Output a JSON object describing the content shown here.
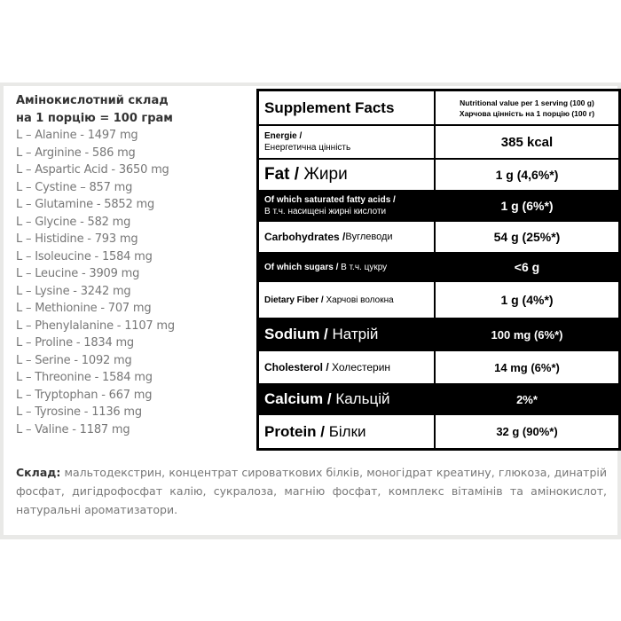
{
  "amino": {
    "title_line1": "Амінокислотний склад",
    "title_line2": "на 1 порцію = 100 грам",
    "items": [
      "L – Alanine - 1497 mg",
      "L – Arginine - 586 mg",
      "L – Aspartic Acid - 3650 mg",
      "L – Cystine – 857 mg",
      "L – Glutamine - 5852 mg",
      "L – Glycine - 582 mg",
      "L – Histidine - 793 mg",
      "L – Isoleucine - 1584 mg",
      "L – Leucine - 3909 mg",
      "L – Lysine - 3242 mg",
      "L – Methionine - 707 mg",
      "L – Phenylalanine - 1107 mg",
      "L – Proline - 1834 mg",
      "L – Serine - 1092 mg",
      "L – Threonine - 1584 mg",
      "L – Tryptophan - 667 mg",
      "L – Tyrosine - 1136 mg",
      "L – Valine - 1187 mg"
    ]
  },
  "facts": {
    "title": "Supplement Facts",
    "header_en": "Nutritional value per 1 serving (100 g)",
    "header_ua": "Харчова цінність на 1 порцію (100 г)",
    "rows": [
      {
        "en": "Energie /",
        "ua": "Енергетична цінність",
        "value": "385 kcal"
      },
      {
        "en": "Fat /",
        "ua": "Жири",
        "value": "1 g (4,6%*)"
      },
      {
        "en": "Of which saturated fatty acids /",
        "ua": "В т.ч. насищені жирні кислоти",
        "value": "1 g (6%*)"
      },
      {
        "en": "Carbohydrates /",
        "ua": "Вуглеводи",
        "value": "54 g (25%*)"
      },
      {
        "en": "Of which sugars /",
        "ua": "В т.ч. цукру",
        "value": "<6 g"
      },
      {
        "en": "Dietary Fiber /",
        "ua": "Харчові волокна",
        "value": "1 g (4%*)"
      },
      {
        "en": "Sodium /",
        "ua": "Натрій",
        "value": "100 mg (6%*)"
      },
      {
        "en": "Cholesterol  /",
        "ua": "Холестерин",
        "value": "14 mg (6%*)"
      },
      {
        "en": "Calcium /",
        "ua": "Кальцій",
        "value": "2%*"
      },
      {
        "en": "Protein /",
        "ua": "Білки",
        "value": "32 g (90%*)"
      }
    ]
  },
  "composition": {
    "label": "Склад:",
    "text": "мальтодекстрин, концентрат сироваткових білків, моногідрат креатину, глюкоза, динатрій фосфат, дигідрофосфат калію, сукралоза, магнію фосфат, комплекс вітамінів та амінокислот, натуральні ароматизатори."
  }
}
